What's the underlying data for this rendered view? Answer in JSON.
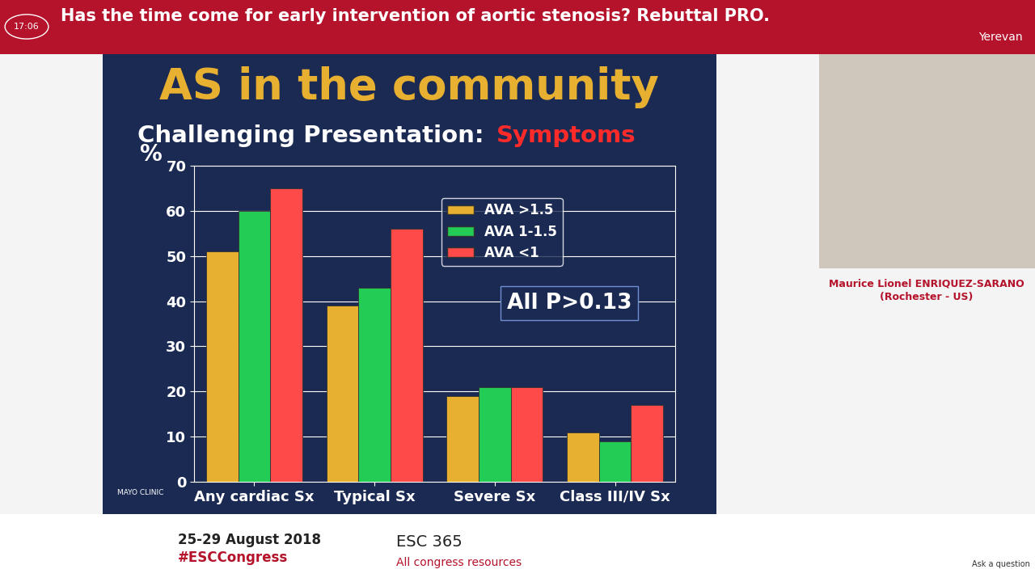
{
  "chart_data": {
    "type": "bar",
    "title": "AS in the community",
    "subtitle": "Challenging Presentation: Symptoms",
    "y_label": "%",
    "categories": [
      "Any cardiac Sx",
      "Typical Sx",
      "Severe Sx",
      "Class III/IV Sx"
    ],
    "series": [
      {
        "name": "AVA >1.5",
        "color": "#e8b030",
        "values": [
          51,
          39,
          19,
          11
        ]
      },
      {
        "name": "AVA 1-1.5",
        "color": "#22cc55",
        "values": [
          60,
          43,
          21,
          9
        ]
      },
      {
        "name": "AVA <1",
        "color": "#ff4a4a",
        "values": [
          65,
          56,
          21,
          17
        ]
      }
    ],
    "ylim": [
      0,
      70
    ],
    "yticks": [
      0,
      10,
      20,
      30,
      40,
      50,
      60,
      70
    ],
    "grid": true,
    "legend": "upper right",
    "annotations": [
      "All P>0.13",
      "MAYO CLINIC",
      "Has the time come for early intervention of aortic stenosis? Rebuttal PRO.",
      "17:06",
      "Yerevan",
      "Maurice Lionel ENRIQUEZ-SARANO",
      "(Rochester - US)",
      "25-29 August 2018",
      "#ESCCongress",
      "ESC 365",
      "All congress resources",
      "Ask a question"
    ]
  }
}
